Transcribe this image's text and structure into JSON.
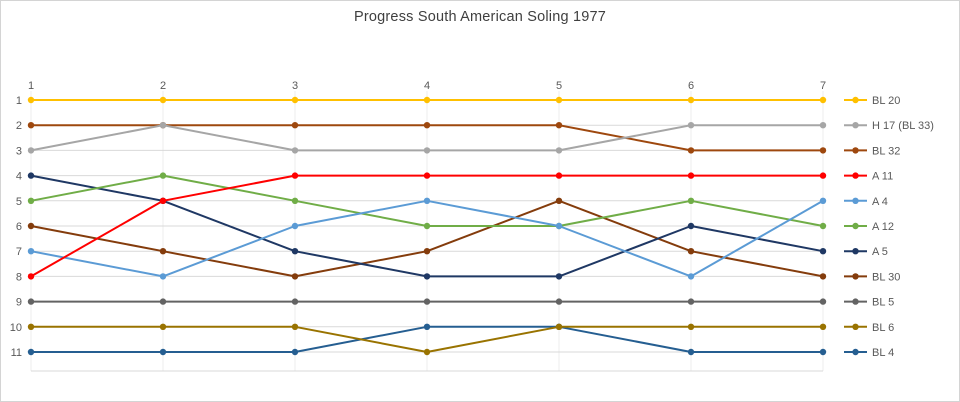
{
  "title": "Progress South American Soling 1977",
  "chart_data": {
    "type": "line",
    "title": "Progress South American Soling 1977",
    "subtitle": "",
    "xlabel": "",
    "ylabel": "",
    "x_ticks": [
      "1",
      "2",
      "3",
      "4",
      "5",
      "6",
      "7"
    ],
    "y_ticks": [
      "1",
      "2",
      "3",
      "4",
      "5",
      "6",
      "7",
      "8",
      "9",
      "10",
      "11"
    ],
    "y_axis_inverted": true,
    "ylim": [
      1,
      11
    ],
    "grid": true,
    "legend_position": "right",
    "gridline_color": "#d9d9d9",
    "v_gridline_color": "#ececec",
    "series": [
      {
        "name": "BL 20",
        "color": "#FFC000",
        "values": [
          1,
          1,
          1,
          1,
          1,
          1,
          1
        ]
      },
      {
        "name": "H 17 (BL 33)",
        "color": "#A6A6A6",
        "values": [
          3,
          2,
          3,
          3,
          3,
          2,
          2
        ]
      },
      {
        "name": "BL 32",
        "color": "#9E480E",
        "values": [
          2,
          2,
          2,
          2,
          2,
          3,
          3
        ]
      },
      {
        "name": "A 11",
        "color": "#FF0000",
        "values": [
          8,
          5,
          4,
          4,
          4,
          4,
          4
        ]
      },
      {
        "name": "A 4",
        "color": "#5B9BD5",
        "values": [
          7,
          8,
          6,
          5,
          6,
          8,
          5
        ]
      },
      {
        "name": "A 12",
        "color": "#70AD47",
        "values": [
          5,
          4,
          5,
          6,
          6,
          5,
          6
        ]
      },
      {
        "name": "A 5",
        "color": "#1F3864",
        "values": [
          4,
          5,
          7,
          8,
          8,
          6,
          7
        ]
      },
      {
        "name": "BL 30",
        "color": "#843C0C",
        "values": [
          6,
          7,
          8,
          7,
          5,
          7,
          8
        ]
      },
      {
        "name": "BL 5",
        "color": "#636363",
        "values": [
          9,
          9,
          9,
          9,
          9,
          9,
          9
        ]
      },
      {
        "name": "BL 6",
        "color": "#997300",
        "values": [
          10,
          10,
          10,
          11,
          10,
          10,
          10
        ]
      },
      {
        "name": "BL 4",
        "color": "#255E91",
        "values": [
          11,
          11,
          11,
          10,
          10,
          11,
          11
        ]
      }
    ]
  }
}
